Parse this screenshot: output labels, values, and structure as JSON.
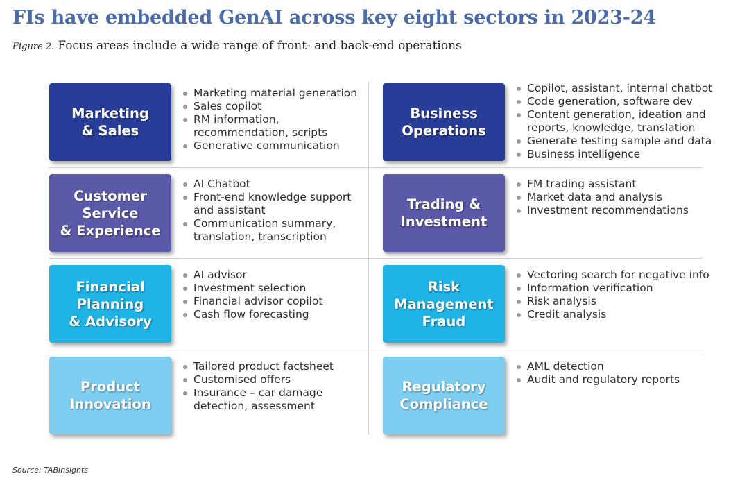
{
  "title": "FIs have embedded GenAI across key eight sectors in 2023-24",
  "subtitle": {
    "figure": "Figure 2.",
    "text": "Focus areas include a wide range of front- and back-end operations"
  },
  "colors": {
    "dark_blue": "#283d98",
    "purple_blue": "#5a5aa8",
    "cyan": "#1fb3e6",
    "light_blue": "#7ecef2",
    "title": "#4a6aa8"
  },
  "sectors": [
    {
      "label": "Marketing\n& Sales",
      "items": [
        "Marketing material generation",
        "Sales copilot",
        "RM information,\nrecommendation, scripts",
        "Generative communication"
      ]
    },
    {
      "label": "Business\nOperations",
      "items": [
        "Copilot, assistant, internal chatbot",
        "Code generation, software dev",
        "Content generation, ideation and\nreports, knowledge, translation",
        "Generate testing sample and data",
        "Business intelligence"
      ]
    },
    {
      "label": "Customer\nService\n& Experience",
      "items": [
        "AI Chatbot",
        "Front-end knowledge support\nand assistant",
        "Communication summary,\ntranslation, transcription"
      ]
    },
    {
      "label": "Trading &\nInvestment",
      "items": [
        "FM trading assistant",
        "Market data and analysis",
        "Investment recommendations"
      ]
    },
    {
      "label": "Financial\nPlanning\n& Advisory",
      "items": [
        "AI advisor",
        "Investment selection",
        "Financial advisor copilot",
        "Cash flow forecasting"
      ]
    },
    {
      "label": "Risk\nManagement\nFraud",
      "items": [
        "Vectoring search for negative info",
        "Information verification",
        "Risk analysis",
        "Credit analysis"
      ]
    },
    {
      "label": "Product\nInnovation",
      "items": [
        "Tailored product factsheet",
        "Customised offers",
        "Insurance – car damage\ndetection, assessment"
      ]
    },
    {
      "label": "Regulatory\nCompliance",
      "items": [
        "AML detection",
        "Audit and regulatory reports"
      ]
    }
  ],
  "source": "Source: TABInsights"
}
